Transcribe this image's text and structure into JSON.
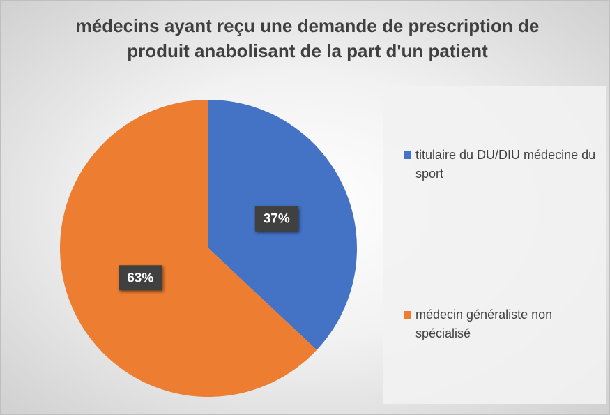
{
  "chart_data": {
    "type": "pie",
    "title": "médecins ayant reçu une demande de prescription de produit anabolisant de la part d'un patient",
    "series": [
      {
        "name": "titulaire du DU/DIU médecine du sport",
        "color": "#4472c4"
      },
      {
        "name": "médecin généraliste non spécialisé",
        "color": "#ed7d31"
      }
    ],
    "values": [
      37,
      63
    ],
    "value_labels": [
      "37%",
      "63%"
    ],
    "start_angle": 0,
    "direction": "clockwise",
    "legend": "right"
  }
}
